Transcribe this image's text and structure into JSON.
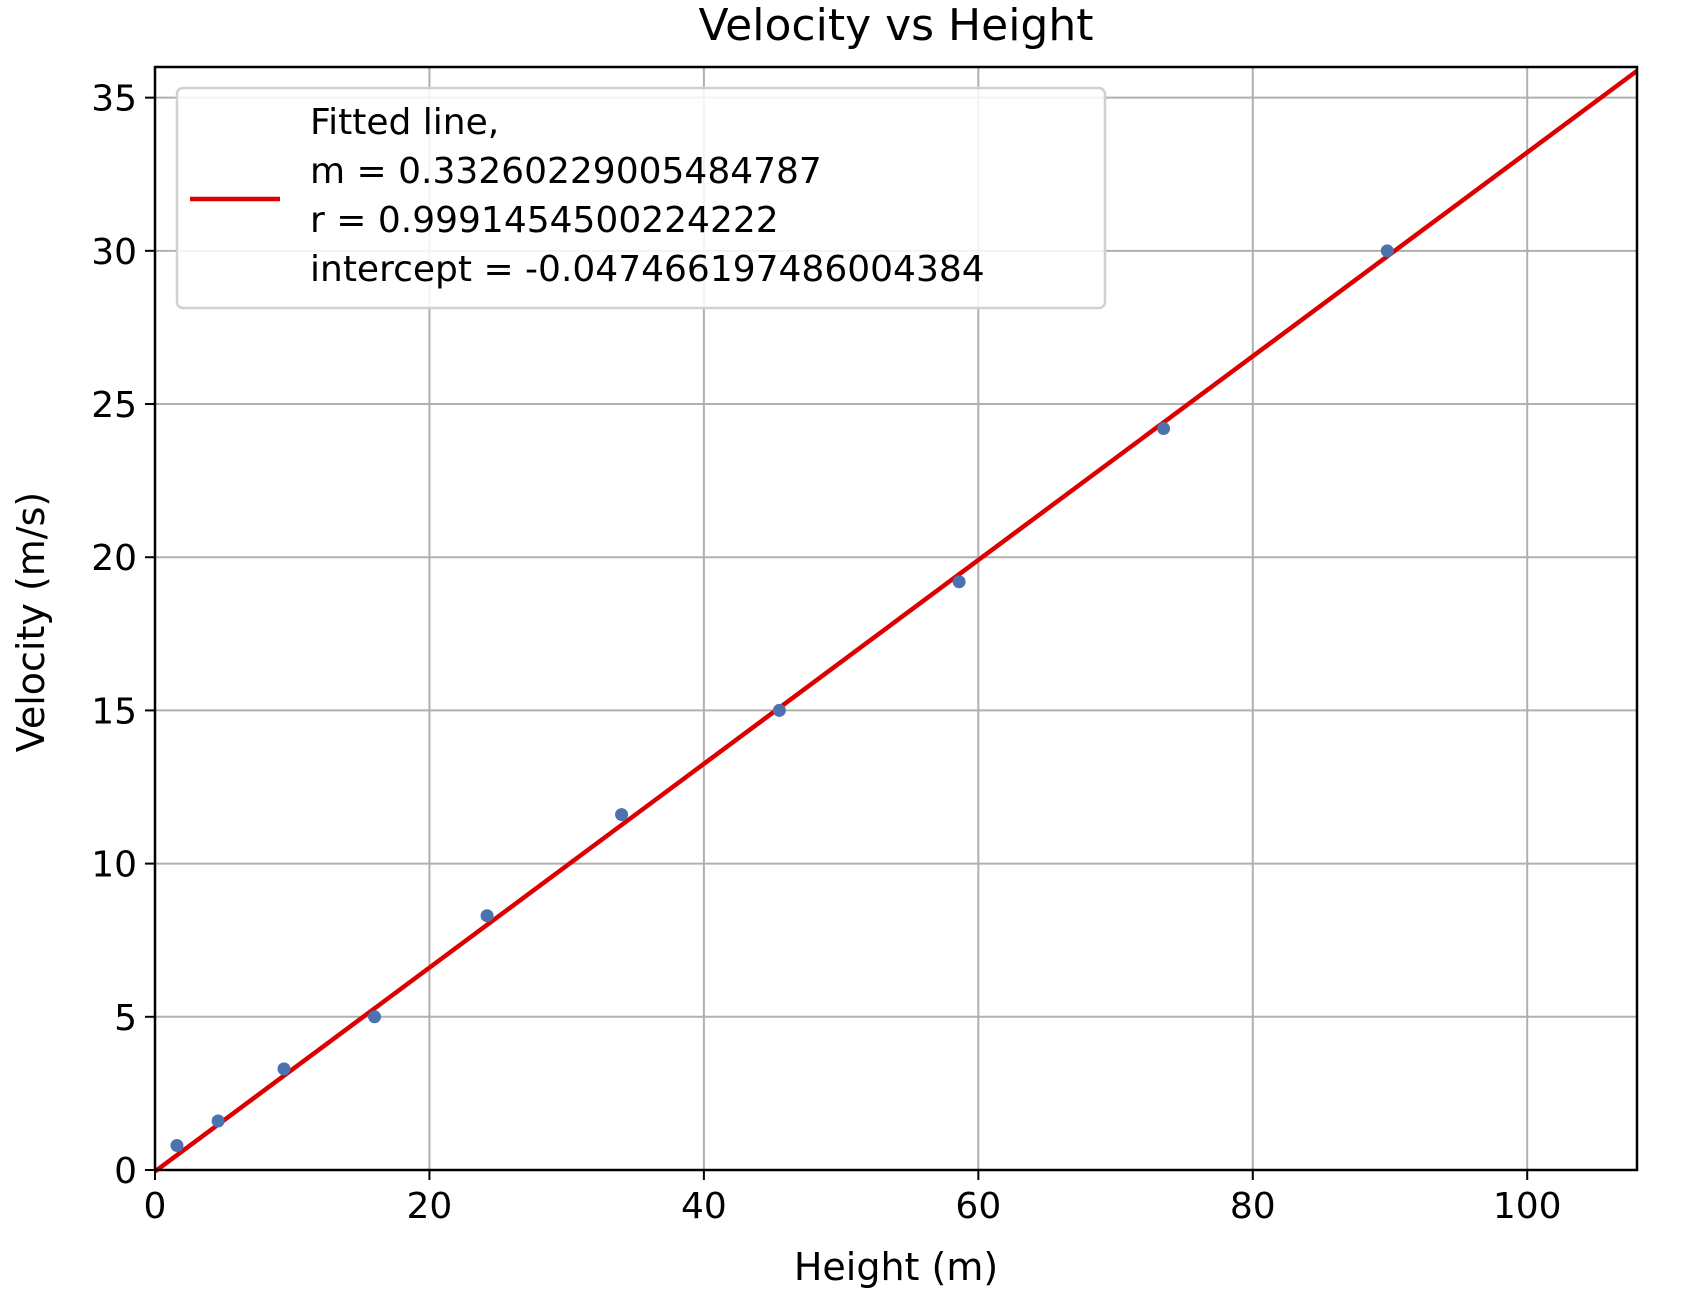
{
  "chart_data": {
    "type": "scatter",
    "title": "Velocity vs Height",
    "xlabel": "Height (m)",
    "ylabel": "Velocity (m/s)",
    "xlim": [
      0,
      108
    ],
    "ylim": [
      0,
      36
    ],
    "xticks": [
      0,
      20,
      40,
      60,
      80,
      100
    ],
    "yticks": [
      0,
      5,
      10,
      15,
      20,
      25,
      30,
      35
    ],
    "grid": true,
    "legend_position": "top-left",
    "series": [
      {
        "type": "scatter",
        "color": "#4c72b0",
        "x": [
          1.6,
          4.6,
          9.4,
          16.0,
          24.2,
          34.0,
          45.5,
          58.6,
          73.5,
          89.8
        ],
        "y": [
          0.8,
          1.6,
          3.3,
          5.0,
          8.3,
          11.6,
          15.0,
          19.2,
          24.2,
          30.0
        ]
      },
      {
        "type": "line",
        "color": "#dd0000",
        "legend_lines": [
          "Fitted line,",
          "m = 0.33260229005484787",
          "r = 0.9991454500224222",
          "intercept = -0.04746619748600438​4"
        ],
        "slope": 0.33260229005484787,
        "intercept": -0.047466197486004384
      }
    ]
  }
}
